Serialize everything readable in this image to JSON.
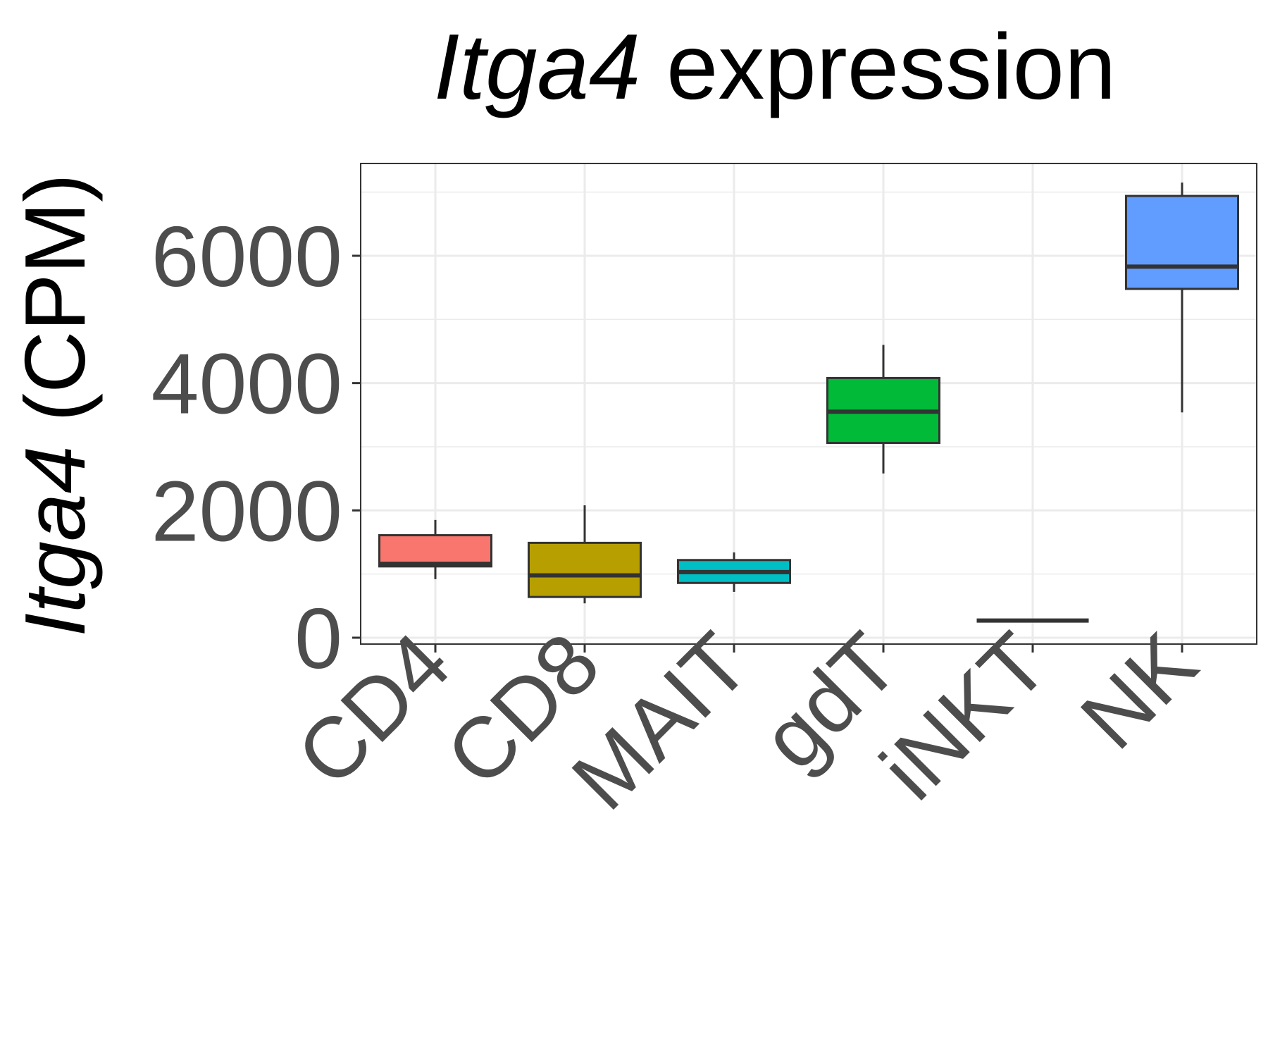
{
  "chart_data": {
    "type": "boxplot",
    "title": {
      "gene": "Itga4",
      "suffix": " expression"
    },
    "ylabel": {
      "gene": "Itga4",
      "suffix": " (CPM)"
    },
    "xlabel": "",
    "ylim": [
      -100,
      7450
    ],
    "y_ticks": [
      0,
      2000,
      4000,
      6000
    ],
    "y_minor_ticks": [
      1000,
      3000,
      5000,
      7000
    ],
    "grid": true,
    "legend": "none",
    "categories": [
      "CD4",
      "CD8",
      "MAIT",
      "gdT",
      "iNKT",
      "NK"
    ],
    "colors": [
      "#F8766D",
      "#B79F00",
      "#00BFC4",
      "#00BA38",
      "#333333",
      "#619CFF"
    ],
    "boxes": [
      {
        "category": "CD4",
        "whisker_low": 920,
        "q1": 1120,
        "median": 1160,
        "q3": 1610,
        "whisker_high": 1850
      },
      {
        "category": "CD8",
        "whisker_low": 540,
        "q1": 640,
        "median": 980,
        "q3": 1490,
        "whisker_high": 2080
      },
      {
        "category": "MAIT",
        "whisker_low": 720,
        "q1": 860,
        "median": 1030,
        "q3": 1220,
        "whisker_high": 1340
      },
      {
        "category": "gdT",
        "whisker_low": 2580,
        "q1": 3060,
        "median": 3550,
        "q3": 4080,
        "whisker_high": 4600
      },
      {
        "category": "iNKT",
        "whisker_low": 270,
        "q1": 270,
        "median": 270,
        "q3": 270,
        "whisker_high": 270
      },
      {
        "category": "NK",
        "whisker_low": 3540,
        "q1": 5480,
        "median": 5830,
        "q3": 6940,
        "whisker_high": 7150
      }
    ]
  }
}
